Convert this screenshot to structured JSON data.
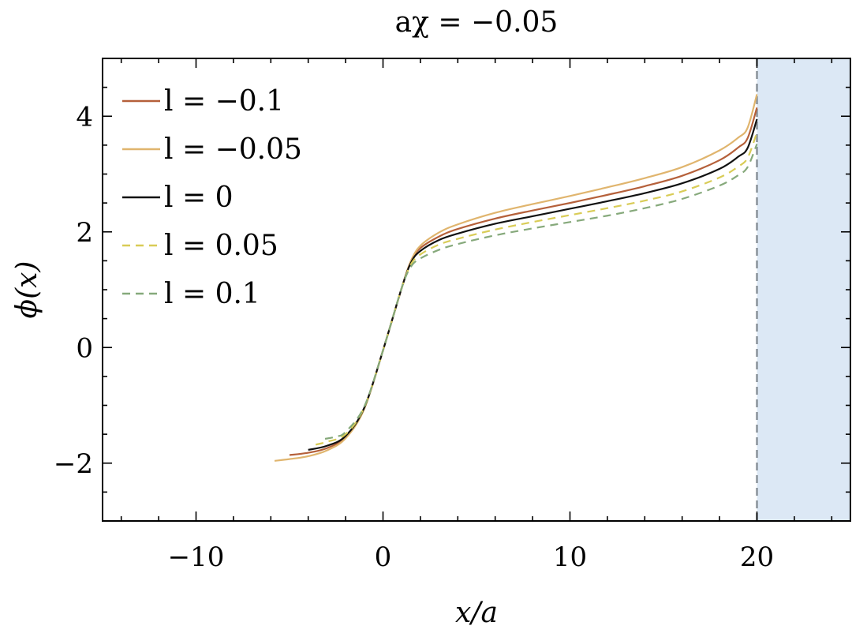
{
  "chart_data": {
    "type": "line",
    "title": "aχ = −0.05",
    "xlabel": "x/a",
    "ylabel": "ϕ(x)",
    "xlim": [
      -15,
      25
    ],
    "ylim": [
      -3,
      5
    ],
    "xticks": [
      -10,
      0,
      10,
      20
    ],
    "xtick_labels": [
      "−10",
      "0",
      "10",
      "20"
    ],
    "yticks": [
      -2,
      0,
      2,
      4
    ],
    "ytick_labels": [
      "−2",
      "0",
      "2",
      "4"
    ],
    "grid": false,
    "legend_position": "top-left",
    "shaded_region": {
      "x_from": 20,
      "x_to": 25,
      "color": "#dce8f5",
      "boundary_color": "#8a929a"
    },
    "series": [
      {
        "name": "l = −0.1",
        "color": "#b5603a",
        "dash": "solid",
        "x": [
          -5,
          -4,
          -3,
          -2,
          -1,
          0,
          1,
          1.5,
          2,
          3,
          4,
          6,
          8,
          10,
          12,
          14,
          16,
          18,
          19,
          19.5,
          20
        ],
        "y": [
          -1.86,
          -1.82,
          -1.74,
          -1.55,
          -1.05,
          -0.05,
          1.03,
          1.5,
          1.72,
          1.92,
          2.05,
          2.23,
          2.37,
          2.5,
          2.64,
          2.79,
          2.97,
          3.24,
          3.46,
          3.62,
          4.15
        ]
      },
      {
        "name": "l = −0.05",
        "color": "#e0b56e",
        "dash": "solid",
        "x": [
          -5.8,
          -5,
          -4,
          -3,
          -2,
          -1,
          0,
          1,
          1.5,
          2,
          3,
          4,
          6,
          8,
          10,
          12,
          14,
          16,
          18,
          19,
          19.5,
          20
        ],
        "y": [
          -1.96,
          -1.93,
          -1.88,
          -1.78,
          -1.57,
          -1.06,
          -0.05,
          1.03,
          1.5,
          1.76,
          1.99,
          2.13,
          2.33,
          2.48,
          2.62,
          2.77,
          2.93,
          3.12,
          3.41,
          3.63,
          3.8,
          4.38
        ]
      },
      {
        "name": "l = 0",
        "color": "#111111",
        "dash": "solid",
        "x": [
          -4,
          -3,
          -2,
          -1,
          0,
          1,
          1.5,
          2,
          3,
          4,
          6,
          8,
          10,
          12,
          14,
          16,
          18,
          19,
          19.5,
          20
        ],
        "y": [
          -1.77,
          -1.7,
          -1.53,
          -1.04,
          -0.05,
          1.03,
          1.47,
          1.67,
          1.86,
          1.97,
          2.14,
          2.27,
          2.4,
          2.53,
          2.67,
          2.84,
          3.09,
          3.3,
          3.45,
          3.95
        ]
      },
      {
        "name": "l = 0.05",
        "color": "#d9cc57",
        "dash": "dashed",
        "x": [
          -3.6,
          -3,
          -2,
          -1,
          0,
          1,
          1.5,
          2,
          3,
          4,
          6,
          8,
          10,
          12,
          14,
          16,
          18,
          19,
          19.5,
          20
        ],
        "y": [
          -1.68,
          -1.63,
          -1.5,
          -1.03,
          -0.05,
          1.03,
          1.44,
          1.61,
          1.78,
          1.88,
          2.04,
          2.17,
          2.29,
          2.41,
          2.54,
          2.7,
          2.94,
          3.13,
          3.28,
          3.72
        ]
      },
      {
        "name": "l = 0.1",
        "color": "#86a97b",
        "dash": "dashed",
        "x": [
          -3.1,
          -2.5,
          -2,
          -1,
          0,
          1,
          1.5,
          2,
          3,
          4,
          6,
          8,
          10,
          12,
          14,
          16,
          18,
          19,
          19.5,
          20
        ],
        "y": [
          -1.58,
          -1.54,
          -1.46,
          -1.02,
          -0.05,
          1.03,
          1.4,
          1.54,
          1.69,
          1.79,
          1.94,
          2.06,
          2.17,
          2.28,
          2.41,
          2.57,
          2.8,
          2.98,
          3.12,
          3.52
        ]
      }
    ]
  }
}
